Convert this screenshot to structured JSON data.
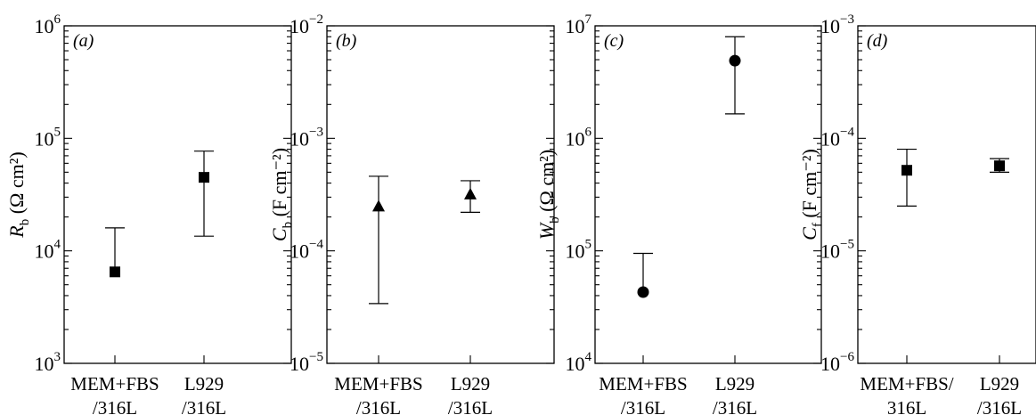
{
  "chart_data": [
    {
      "type": "scatter",
      "panel_label": "(a)",
      "ylabel": {
        "symbol": "R",
        "sub": "b",
        "unit": " (Ω cm²)"
      },
      "yscale": "log",
      "ylim": [
        1000,
        1000000
      ],
      "yticks": [
        {
          "value": 1000,
          "base": "10",
          "exp": "3"
        },
        {
          "value": 10000,
          "base": "10",
          "exp": "4"
        },
        {
          "value": 100000,
          "base": "10",
          "exp": "5"
        },
        {
          "value": 1000000,
          "base": "10",
          "exp": "6"
        }
      ],
      "categories": [
        {
          "line1": "MEM+FBS",
          "line2": "/316L"
        },
        {
          "line1": "L929",
          "line2": "/316L"
        }
      ],
      "marker": "square",
      "values": [
        6500,
        45000
      ],
      "errors": [
        {
          "low": 6500,
          "high": 16000
        },
        {
          "low": 13500,
          "high": 77000
        }
      ]
    },
    {
      "type": "scatter",
      "panel_label": "(b)",
      "ylabel": {
        "symbol": "C",
        "sub": "b",
        "unit": " (F cm⁻²)"
      },
      "yscale": "log",
      "ylim": [
        1e-05,
        0.01
      ],
      "yticks": [
        {
          "value": 1e-05,
          "base": "10",
          "exp": "−5"
        },
        {
          "value": 0.0001,
          "base": "10",
          "exp": "−4"
        },
        {
          "value": 0.001,
          "base": "10",
          "exp": "−3"
        },
        {
          "value": 0.01,
          "base": "10",
          "exp": "−2"
        }
      ],
      "categories": [
        {
          "line1": "MEM+FBS",
          "line2": "/316L"
        },
        {
          "line1": "L929",
          "line2": "/316L"
        }
      ],
      "marker": "triangle",
      "values": [
        0.00025,
        0.00032
      ],
      "errors": [
        {
          "low": 3.4e-05,
          "high": 0.00046
        },
        {
          "low": 0.00022,
          "high": 0.00042
        }
      ]
    },
    {
      "type": "scatter",
      "panel_label": "(c)",
      "ylabel": {
        "symbol": "W",
        "sub": "b",
        "unit": " (Ω cm²)"
      },
      "yscale": "log",
      "ylim": [
        10000,
        10000000
      ],
      "yticks": [
        {
          "value": 10000,
          "base": "10",
          "exp": "4"
        },
        {
          "value": 100000,
          "base": "10",
          "exp": "5"
        },
        {
          "value": 1000000,
          "base": "10",
          "exp": "6"
        },
        {
          "value": 10000000,
          "base": "10",
          "exp": "7"
        }
      ],
      "categories": [
        {
          "line1": "MEM+FBS",
          "line2": "/316L"
        },
        {
          "line1": "L929",
          "line2": "/316L"
        }
      ],
      "marker": "circle",
      "values": [
        43000,
        4900000
      ],
      "errors": [
        {
          "low": 43000,
          "high": 95000
        },
        {
          "low": 1650000,
          "high": 8000000
        }
      ]
    },
    {
      "type": "scatter",
      "panel_label": "(d)",
      "ylabel": {
        "symbol": "C",
        "sub": "f",
        "unit": " (F cm⁻²)"
      },
      "yscale": "log",
      "ylim": [
        1e-06,
        0.001
      ],
      "yticks": [
        {
          "value": 1e-06,
          "base": "10",
          "exp": "−6"
        },
        {
          "value": 1e-05,
          "base": "10",
          "exp": "−5"
        },
        {
          "value": 0.0001,
          "base": "10",
          "exp": "−4"
        },
        {
          "value": 0.001,
          "base": "10",
          "exp": "−3"
        }
      ],
      "categories": [
        {
          "line1": "MEM+FBS/",
          "line2": "316L"
        },
        {
          "line1": "L929",
          "line2": "/316L"
        }
      ],
      "marker": "square",
      "values": [
        5.2e-05,
        5.7e-05
      ],
      "errors": [
        {
          "low": 2.5e-05,
          "high": 8e-05
        },
        {
          "low": 5e-05,
          "high": 6.6e-05
        }
      ]
    }
  ]
}
